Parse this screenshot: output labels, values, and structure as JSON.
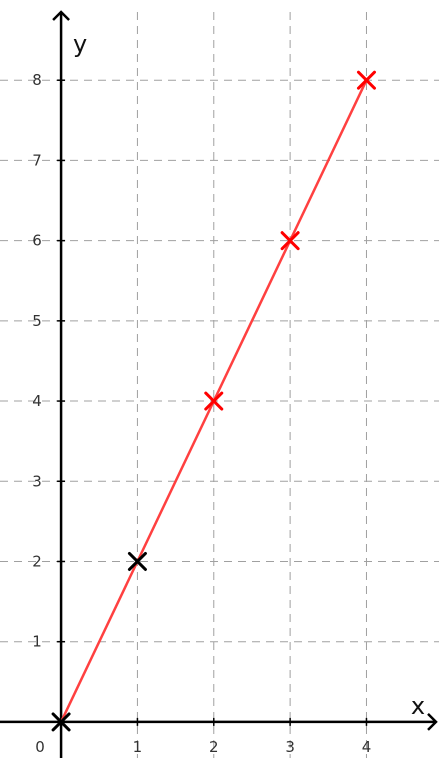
{
  "chart_data": {
    "type": "scatter",
    "xlabel": "x",
    "ylabel": "y",
    "xlim": [
      -0.8,
      4.95
    ],
    "ylim": [
      -0.45,
      9.0
    ],
    "x_ticks": [
      {
        "value": 0,
        "label": "0"
      },
      {
        "value": 1,
        "label": "1"
      },
      {
        "value": 2,
        "label": "2"
      },
      {
        "value": 3,
        "label": "3"
      },
      {
        "value": 4,
        "label": "4"
      }
    ],
    "y_ticks": [
      {
        "value": 1,
        "label": "1"
      },
      {
        "value": 2,
        "label": "2"
      },
      {
        "value": 3,
        "label": "3"
      },
      {
        "value": 4,
        "label": "4"
      },
      {
        "value": 5,
        "label": "5"
      },
      {
        "value": 6,
        "label": "6"
      },
      {
        "value": 7,
        "label": "7"
      },
      {
        "value": 8,
        "label": "8"
      }
    ],
    "grid": true,
    "line": {
      "x": [
        0,
        4
      ],
      "y": [
        0,
        8
      ],
      "color": "#ff4040"
    },
    "points": [
      {
        "x": 0,
        "y": 0,
        "color": "#000000"
      },
      {
        "x": 1,
        "y": 2,
        "color": "#000000"
      },
      {
        "x": 2,
        "y": 4,
        "color": "#ff0000"
      },
      {
        "x": 3,
        "y": 6,
        "color": "#ff0000"
      },
      {
        "x": 4,
        "y": 8,
        "color": "#ff0000"
      }
    ],
    "colors": {
      "axis": "#000000",
      "grid": "#a0a0a0",
      "line": "#ff4040"
    }
  }
}
